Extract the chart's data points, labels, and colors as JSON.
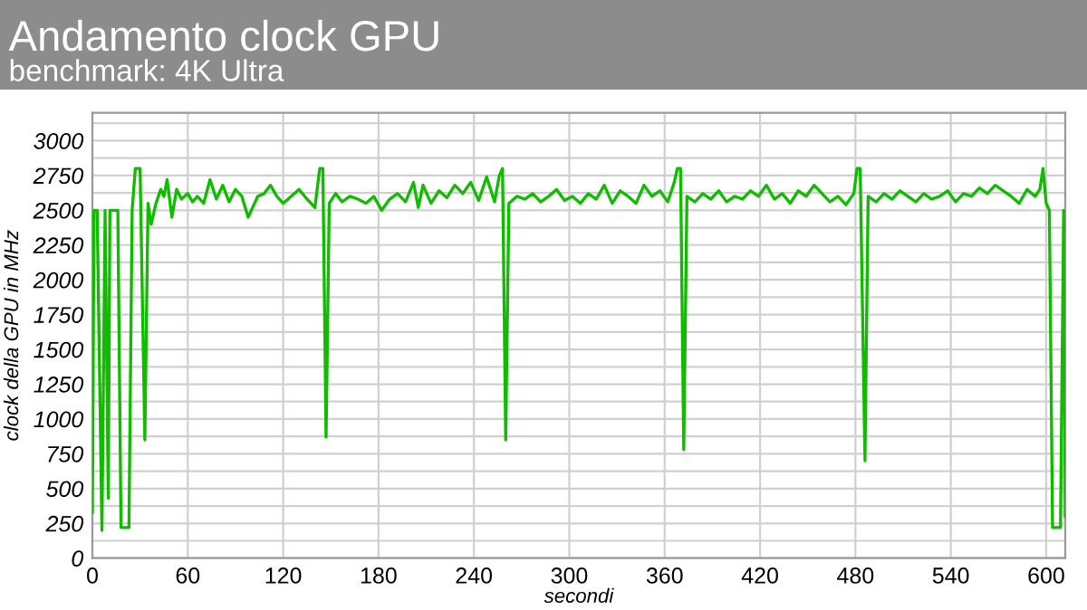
{
  "chart_data": {
    "type": "line",
    "title": "Andamento clock GPU",
    "subtitle": "benchmark: 4K Ultra",
    "xlabel": "secondi",
    "ylabel": "clock della GPU in MHz",
    "xlim": [
      0,
      612
    ],
    "xticks": [
      0,
      60,
      120,
      180,
      240,
      300,
      360,
      420,
      480,
      540,
      600
    ],
    "ylim": [
      0,
      3200
    ],
    "yticks": [
      0,
      {
        "value": 125,
        "label": null
      },
      250,
      {
        "value": 375,
        "label": null
      },
      500,
      {
        "value": 625,
        "label": null
      },
      750,
      {
        "value": 875,
        "label": null
      },
      1000,
      {
        "value": 1125,
        "label": null
      },
      1250,
      {
        "value": 1375,
        "label": null
      },
      1500,
      {
        "value": 1625,
        "label": null
      },
      1750,
      {
        "value": 1875,
        "label": null
      },
      2000,
      {
        "value": 2125,
        "label": null
      },
      2250,
      {
        "value": 2375,
        "label": null
      },
      2500,
      {
        "value": 2625,
        "label": null
      },
      2750,
      {
        "value": 2875,
        "label": null
      },
      3000,
      {
        "value": 3125,
        "label": null
      }
    ],
    "grid": true,
    "marker": "none",
    "line_style": "solid",
    "series": [
      {
        "color": "#11bb00",
        "x": [
          0,
          1,
          3,
          6,
          8,
          10,
          11,
          16,
          18,
          23,
          25,
          27,
          30,
          33,
          35,
          37,
          40,
          43,
          45,
          47,
          50,
          53,
          56,
          60,
          63,
          66,
          70,
          74,
          78,
          82,
          86,
          90,
          94,
          98,
          100,
          104,
          108,
          112,
          116,
          120,
          125,
          130,
          135,
          140,
          143,
          145,
          147,
          149,
          153,
          157,
          162,
          167,
          172,
          177,
          182,
          187,
          192,
          197,
          202,
          205,
          208,
          213,
          218,
          223,
          228,
          233,
          238,
          243,
          248,
          253,
          256,
          258,
          260,
          262,
          267,
          272,
          277,
          282,
          287,
          292,
          297,
          302,
          307,
          312,
          317,
          322,
          327,
          332,
          337,
          342,
          347,
          352,
          357,
          362,
          366,
          368,
          370,
          372,
          374,
          379,
          384,
          389,
          394,
          399,
          404,
          409,
          414,
          419,
          424,
          429,
          434,
          439,
          444,
          449,
          454,
          459,
          464,
          469,
          474,
          479,
          481,
          483,
          486,
          488,
          493,
          498,
          503,
          508,
          513,
          518,
          523,
          528,
          533,
          538,
          543,
          548,
          553,
          558,
          563,
          568,
          573,
          578,
          583,
          588,
          593,
          596,
          598,
          600,
          602,
          604,
          609,
          611,
          612
        ],
        "values": [
          330,
          2500,
          2500,
          200,
          2500,
          430,
          2500,
          2500,
          220,
          220,
          2500,
          2800,
          2800,
          850,
          2550,
          2400,
          2550,
          2650,
          2600,
          2720,
          2450,
          2650,
          2580,
          2620,
          2560,
          2600,
          2550,
          2720,
          2580,
          2680,
          2560,
          2650,
          2600,
          2450,
          2500,
          2600,
          2620,
          2680,
          2600,
          2550,
          2600,
          2650,
          2580,
          2520,
          2800,
          2800,
          870,
          2550,
          2620,
          2560,
          2600,
          2580,
          2550,
          2600,
          2500,
          2580,
          2620,
          2560,
          2700,
          2520,
          2680,
          2550,
          2640,
          2590,
          2680,
          2620,
          2700,
          2570,
          2740,
          2560,
          2750,
          2800,
          850,
          2550,
          2600,
          2580,
          2620,
          2560,
          2600,
          2650,
          2570,
          2600,
          2550,
          2620,
          2580,
          2680,
          2550,
          2640,
          2600,
          2550,
          2680,
          2600,
          2640,
          2560,
          2700,
          2800,
          2800,
          780,
          2600,
          2560,
          2620,
          2580,
          2640,
          2560,
          2600,
          2580,
          2640,
          2600,
          2680,
          2580,
          2620,
          2550,
          2640,
          2600,
          2680,
          2620,
          2560,
          2600,
          2540,
          2620,
          2800,
          2800,
          700,
          2600,
          2560,
          2620,
          2580,
          2640,
          2600,
          2560,
          2620,
          2580,
          2600,
          2640,
          2560,
          2620,
          2600,
          2660,
          2620,
          2680,
          2640,
          2600,
          2550,
          2650,
          2600,
          2650,
          2800,
          2550,
          2500,
          220,
          220,
          2500,
          300
        ]
      }
    ]
  }
}
